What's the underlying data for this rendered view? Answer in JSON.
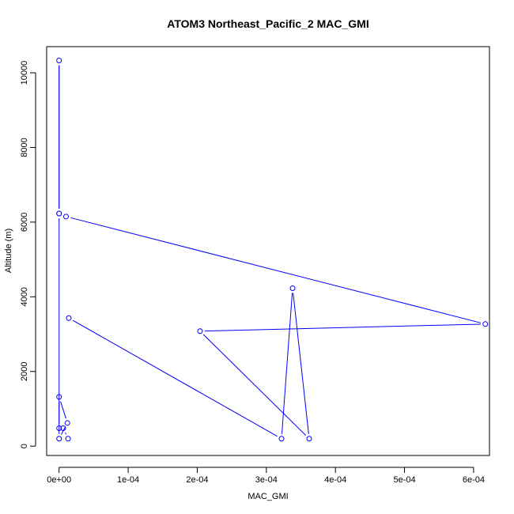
{
  "chart_data": {
    "type": "line",
    "title": "ATOM3 Northeast_Pacific_2 MAC_GMI",
    "xlabel": "MAC_GMI",
    "ylabel": "Altitude (m)",
    "xlim": [
      -1.8e-05,
      0.000623
    ],
    "ylim": [
      -250,
      10700
    ],
    "x_ticks": [
      0,
      0.0001,
      0.0002,
      0.0003,
      0.0004,
      0.0005,
      0.0006
    ],
    "x_tick_labels": [
      "0e+00",
      "1e-04",
      "2e-04",
      "3e-04",
      "4e-04",
      "5e-04",
      "6e-04"
    ],
    "y_ticks": [
      0,
      2000,
      4000,
      6000,
      8000,
      10000
    ],
    "y_tick_labels": [
      "0",
      "2000",
      "4000",
      "6000",
      "8000",
      "10000"
    ],
    "grid": false,
    "legend": "none",
    "line_color": "#0000ff",
    "marker": "open-circle",
    "series": [
      {
        "points": [
          {
            "x": 1.3e-05,
            "y": 200
          },
          {
            "x": 6e-06,
            "y": 480
          },
          {
            "x": 0.0,
            "y": 480
          },
          {
            "x": 0.0,
            "y": 1320
          },
          {
            "x": 1.2e-05,
            "y": 620
          },
          {
            "x": 0.0,
            "y": 200
          },
          {
            "x": 0.0,
            "y": 6230
          },
          {
            "x": 0.0,
            "y": 10330
          },
          {
            "x": 0.0,
            "y": 6230
          },
          {
            "x": 1e-05,
            "y": 6150
          },
          {
            "x": 0.000617,
            "y": 3270
          },
          {
            "x": 0.000204,
            "y": 3080
          },
          {
            "x": 0.000362,
            "y": 200
          },
          {
            "x": 0.000338,
            "y": 4230
          },
          {
            "x": 0.000322,
            "y": 200
          },
          {
            "x": 1.4e-05,
            "y": 3430
          }
        ]
      }
    ]
  }
}
